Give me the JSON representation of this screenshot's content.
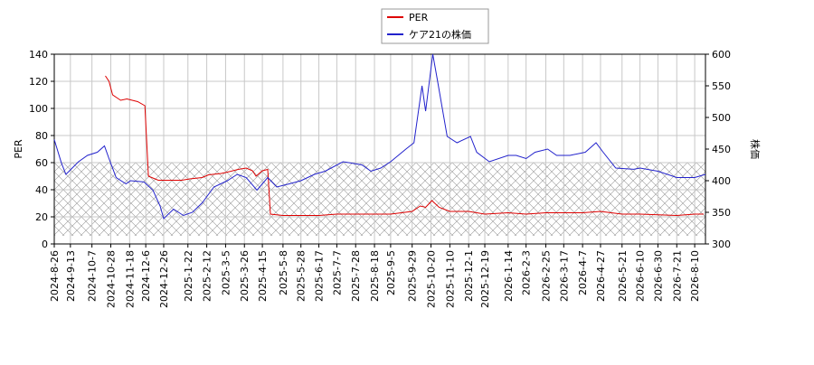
{
  "chart_data": {
    "type": "line",
    "y_label": "PER",
    "y2_label": "株価",
    "xlim": [
      "2024-8-26",
      "2026-8-22"
    ],
    "xticks": [
      "2024-8-26",
      "2024-9-13",
      "2024-10-7",
      "2024-10-28",
      "2024-11-18",
      "2024-12-6",
      "2024-12-26",
      "2025-1-22",
      "2025-2-12",
      "2025-3-5",
      "2025-3-26",
      "2025-4-15",
      "2025-5-8",
      "2025-5-28",
      "2025-6-17",
      "2025-7-7",
      "2025-7-28",
      "2025-8-18",
      "2025-9-5",
      "2025-9-29",
      "2025-10-20",
      "2025-11-10",
      "2025-12-1",
      "2025-12-19",
      "2026-1-14",
      "2026-2-3",
      "2026-2-25",
      "2026-3-17",
      "2026-4-7",
      "2026-4-27",
      "2026-5-21",
      "2026-6-10",
      "2026-6-30",
      "2026-7-21",
      "2026-8-10"
    ],
    "ylim": [
      0,
      140
    ],
    "yticks": [
      0,
      20,
      40,
      60,
      80,
      100,
      120,
      140
    ],
    "y2lim": [
      300,
      600
    ],
    "y2ticks": [
      300,
      350,
      400,
      450,
      500,
      550,
      600
    ],
    "grid": true,
    "legend": "top",
    "shaded_range": [
      6,
      60
    ],
    "series": [
      {
        "name": "PER",
        "color": "#dd0000",
        "x": [
          "2024-10-22",
          "2024-10-26",
          "2024-10-30",
          "2024-11-8",
          "2024-11-15",
          "2024-11-27",
          "2024-12-5",
          "2024-12-9",
          "2024-12-20",
          "2024-12-30",
          "2025-1-15",
          "2025-1-24",
          "2025-2-7",
          "2025-2-14",
          "2025-2-28",
          "2025-3-7",
          "2025-3-19",
          "2025-3-28",
          "2025-4-4",
          "2025-4-8",
          "2025-4-15",
          "2025-4-21",
          "2025-4-24",
          "2025-5-8",
          "2025-6-17",
          "2025-7-7",
          "2025-7-28",
          "2025-8-18",
          "2025-9-5",
          "2025-9-29",
          "2025-10-8",
          "2025-10-14",
          "2025-10-21",
          "2025-10-29",
          "2025-11-10",
          "2025-12-1",
          "2025-12-19",
          "2026-1-14",
          "2026-2-3",
          "2026-2-25",
          "2026-3-17",
          "2026-4-7",
          "2026-4-27",
          "2026-5-21",
          "2026-6-10",
          "2026-7-21",
          "2026-8-10",
          "2026-8-20"
        ],
        "values": [
          124,
          120,
          110,
          106,
          107,
          105,
          102,
          50,
          47,
          47,
          47,
          48,
          49,
          51,
          52,
          53,
          55,
          56,
          54,
          50,
          54,
          55,
          22,
          21,
          21,
          22,
          22,
          22,
          22,
          24,
          28,
          27,
          32,
          27,
          24,
          24,
          22,
          23,
          22,
          23,
          23,
          23,
          24,
          22,
          22,
          21,
          22,
          22
        ]
      },
      {
        "name": "ケア21の株価",
        "color": "#2222cc",
        "axis": "y2",
        "x": [
          "2024-8-26",
          "2024-9-3",
          "2024-9-8",
          "2024-9-22",
          "2024-10-2",
          "2024-10-13",
          "2024-10-21",
          "2024-10-26",
          "2024-11-3",
          "2024-11-14",
          "2024-11-19",
          "2024-12-4",
          "2024-12-14",
          "2024-12-22",
          "2024-12-26",
          "2025-1-6",
          "2025-1-17",
          "2025-1-27",
          "2025-2-7",
          "2025-2-20",
          "2025-3-7",
          "2025-3-18",
          "2025-3-28",
          "2025-4-9",
          "2025-4-21",
          "2025-5-1",
          "2025-5-15",
          "2025-5-28",
          "2025-6-12",
          "2025-6-24",
          "2025-7-14",
          "2025-8-4",
          "2025-8-14",
          "2025-8-25",
          "2025-9-5",
          "2025-9-22",
          "2025-10-1",
          "2025-10-10",
          "2025-10-14",
          "2025-10-22",
          "2025-10-27",
          "2025-11-7",
          "2025-11-18",
          "2025-12-3",
          "2025-12-10",
          "2025-12-24",
          "2026-1-14",
          "2026-1-23",
          "2026-2-3",
          "2026-2-13",
          "2026-2-27",
          "2026-3-9",
          "2026-3-24",
          "2026-4-10",
          "2026-4-22",
          "2026-4-30",
          "2026-5-14",
          "2026-6-3",
          "2026-6-10",
          "2026-6-30",
          "2026-7-21",
          "2026-8-10",
          "2026-8-22"
        ],
        "values": [
          465,
          428,
          410,
          430,
          440,
          445,
          455,
          435,
          405,
          395,
          400,
          398,
          385,
          360,
          340,
          355,
          345,
          350,
          365,
          390,
          400,
          410,
          405,
          385,
          405,
          390,
          395,
          400,
          410,
          415,
          430,
          425,
          415,
          420,
          430,
          450,
          460,
          550,
          510,
          600,
          560,
          470,
          460,
          470,
          445,
          430,
          440,
          440,
          435,
          445,
          450,
          440,
          440,
          445,
          460,
          445,
          420,
          418,
          420,
          415,
          405,
          405,
          410
        ]
      }
    ]
  }
}
